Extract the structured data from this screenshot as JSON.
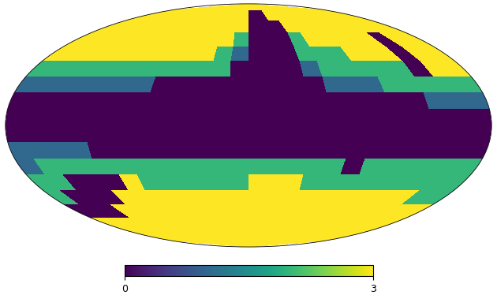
{
  "chart_data": {
    "type": "heatmap",
    "color": "viridis",
    "grid": false,
    "tick_labels": false,
    "colorbar_range": [
      0,
      3
    ],
    "colorbar_ticks": [
      0,
      3
    ],
    "cells": [
      [
        3,
        3,
        3,
        3,
        3,
        3,
        3,
        3,
        3,
        3,
        3,
        3,
        3,
        3,
        3,
        3,
        3,
        3,
        3,
        3,
        3,
        3,
        3,
        3
      ],
      [
        3,
        3,
        3,
        3,
        3,
        3,
        3,
        3,
        3,
        3,
        3,
        3,
        0,
        0,
        3,
        3,
        3,
        3,
        3,
        3,
        3,
        3,
        3,
        3
      ],
      [
        3,
        3,
        3,
        3,
        3,
        3,
        3,
        3,
        3,
        3,
        3,
        3,
        0,
        0,
        0,
        3,
        3,
        3,
        3,
        3,
        3,
        3,
        3,
        3
      ],
      [
        3,
        3,
        3,
        3,
        3,
        3,
        3,
        3,
        3,
        3,
        3,
        2,
        0,
        0,
        0,
        2,
        3,
        3,
        3,
        3,
        3,
        0,
        3,
        3
      ],
      [
        3,
        3,
        3,
        3,
        3,
        3,
        3,
        3,
        3,
        3,
        2,
        1,
        0,
        0,
        0,
        2,
        2,
        2,
        3,
        3,
        3,
        0,
        3,
        3
      ],
      [
        2,
        2,
        2,
        2,
        2,
        2,
        2,
        2,
        2,
        2,
        2,
        0,
        0,
        0,
        0,
        1,
        2,
        2,
        2,
        2,
        2,
        0,
        3,
        3
      ],
      [
        1,
        1,
        1,
        1,
        1,
        1,
        1,
        0,
        0,
        0,
        0,
        0,
        0,
        0,
        0,
        0,
        1,
        1,
        1,
        2,
        2,
        2,
        2,
        2
      ],
      [
        0,
        0,
        0,
        0,
        0,
        0,
        0,
        0,
        0,
        0,
        0,
        0,
        0,
        0,
        0,
        0,
        0,
        0,
        0,
        0,
        0,
        1,
        1,
        1
      ],
      [
        0,
        0,
        0,
        0,
        0,
        0,
        0,
        0,
        0,
        0,
        0,
        0,
        0,
        0,
        0,
        0,
        0,
        0,
        0,
        0,
        0,
        0,
        0,
        0
      ],
      [
        0,
        0,
        0,
        0,
        0,
        0,
        0,
        0,
        0,
        0,
        0,
        0,
        0,
        0,
        0,
        0,
        0,
        0,
        0,
        0,
        0,
        0,
        0,
        0
      ],
      [
        1,
        1,
        1,
        1,
        0,
        0,
        0,
        0,
        0,
        0,
        0,
        0,
        0,
        0,
        0,
        0,
        0,
        0,
        0,
        0,
        0,
        0,
        0,
        0
      ],
      [
        1,
        2,
        2,
        2,
        2,
        2,
        2,
        2,
        2,
        2,
        2,
        2,
        2,
        2,
        2,
        2,
        2,
        0,
        2,
        2,
        2,
        2,
        2,
        2
      ],
      [
        2,
        2,
        0,
        0,
        0,
        3,
        2,
        2,
        2,
        2,
        2,
        2,
        3,
        3,
        3,
        2,
        2,
        2,
        2,
        2,
        2,
        2,
        2,
        2
      ],
      [
        2,
        0,
        0,
        0,
        3,
        3,
        3,
        3,
        3,
        3,
        3,
        3,
        3,
        3,
        3,
        3,
        3,
        3,
        3,
        3,
        3,
        3,
        2,
        2
      ],
      [
        0,
        0,
        0,
        3,
        3,
        3,
        3,
        3,
        3,
        3,
        3,
        3,
        3,
        3,
        3,
        3,
        3,
        3,
        3,
        3,
        3,
        3,
        3,
        3
      ],
      [
        3,
        3,
        3,
        3,
        3,
        3,
        3,
        3,
        3,
        3,
        3,
        3,
        3,
        3,
        3,
        3,
        3,
        3,
        3,
        3,
        3,
        3,
        3,
        3
      ],
      [
        3,
        3,
        3,
        3,
        3,
        3,
        3,
        3,
        3,
        3,
        3,
        3,
        3,
        3,
        3,
        3,
        3,
        3,
        3,
        3,
        3,
        3,
        3,
        3
      ],
      [
        3,
        3,
        3,
        3,
        3,
        3,
        3,
        3,
        3,
        3,
        3,
        3,
        3,
        3,
        3,
        3,
        3,
        3,
        3,
        3,
        3,
        3,
        3,
        3
      ]
    ]
  }
}
